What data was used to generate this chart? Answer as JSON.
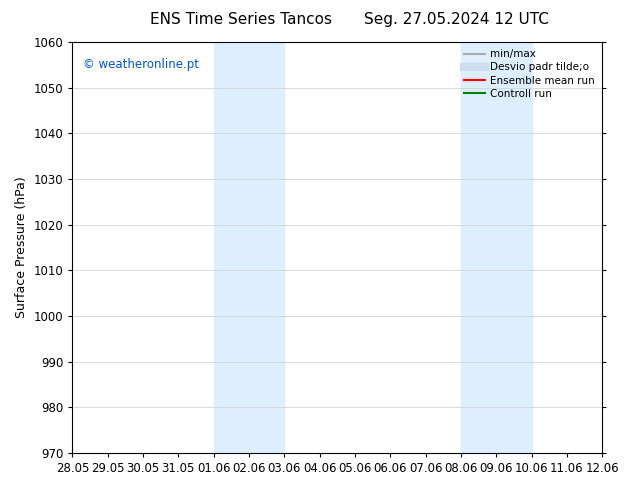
{
  "title_left": "ENS Time Series Tancos",
  "title_right": "Seg. 27.05.2024 12 UTC",
  "ylabel": "Surface Pressure (hPa)",
  "ylim": [
    970,
    1060
  ],
  "yticks": [
    970,
    980,
    990,
    1000,
    1010,
    1020,
    1030,
    1040,
    1050,
    1060
  ],
  "xtick_labels": [
    "28.05",
    "29.05",
    "30.05",
    "31.05",
    "01.06",
    "02.06",
    "03.06",
    "04.06",
    "05.06",
    "06.06",
    "07.06",
    "08.06",
    "09.06",
    "10.06",
    "11.06",
    "12.06"
  ],
  "xtick_positions": [
    0,
    1,
    2,
    3,
    4,
    5,
    6,
    7,
    8,
    9,
    10,
    11,
    12,
    13,
    14,
    15
  ],
  "shaded_regions": [
    {
      "x_start": 4,
      "x_end": 6
    },
    {
      "x_start": 11,
      "x_end": 13
    }
  ],
  "shaded_color": "#ddeeff",
  "watermark": "© weatheronline.pt",
  "watermark_color": "#0055cc",
  "background_color": "#ffffff",
  "legend_entries": [
    {
      "label": "min/max",
      "color": "#aaaaaa",
      "lw": 1.5
    },
    {
      "label": "Desvio padr tilde;o",
      "color": "#ccddee",
      "lw": 6
    },
    {
      "label": "Ensemble mean run",
      "color": "red",
      "lw": 1.5
    },
    {
      "label": "Controll run",
      "color": "green",
      "lw": 1.5
    }
  ],
  "title_fontsize": 11,
  "axis_label_fontsize": 9,
  "tick_fontsize": 8.5,
  "legend_fontsize": 7.5,
  "watermark_fontsize": 8.5
}
